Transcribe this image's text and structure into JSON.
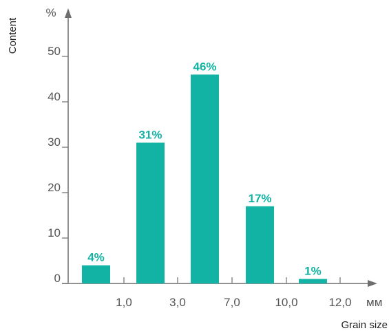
{
  "chart_data": {
    "type": "bar",
    "categories": [
      "<1,0",
      "1,0–3,0",
      "3,0–7,0",
      "7,0–10,0",
      "10,0–12,0"
    ],
    "values": [
      4,
      31,
      46,
      17,
      1
    ],
    "value_labels": [
      "4%",
      "31%",
      "46%",
      "17%",
      "1%"
    ],
    "title": "",
    "xlabel": "Grain size",
    "ylabel": "Content",
    "x_unit": "мм",
    "y_unit": "%",
    "ylim": [
      0,
      60
    ],
    "y_ticks": [
      0,
      10,
      20,
      30,
      40,
      50
    ],
    "y_tick_labels": [
      "0",
      "10",
      "20",
      "30",
      "40",
      "50"
    ],
    "x_tick_labels": [
      "1,0",
      "3,0",
      "7,0",
      "10,0",
      "12,0"
    ],
    "grid": false,
    "bar_color": "#12b3a4",
    "label_color": "#12b3a4",
    "axis_color": "#6e6e6e"
  }
}
